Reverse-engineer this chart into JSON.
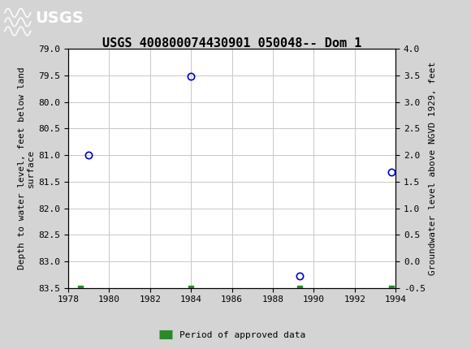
{
  "title": "USGS 400800074430901 050048-- Dom 1",
  "ylabel_left": "Depth to water level, feet below land\nsurface",
  "ylabel_right": "Groundwater level above NGVD 1929, feet",
  "header_color": "#1a7040",
  "background_color": "#d4d4d4",
  "plot_bg_color": "#ffffff",
  "data_points": [
    {
      "year": 1979,
      "depth": 81.0
    },
    {
      "year": 1984,
      "depth": 79.52
    },
    {
      "year": 1989.3,
      "depth": 83.28
    },
    {
      "year": 1993.8,
      "depth": 81.32
    }
  ],
  "green_markers": [
    {
      "year": 1978.6,
      "depth": 83.5
    },
    {
      "year": 1984.0,
      "depth": 83.5
    },
    {
      "year": 1989.3,
      "depth": 83.5
    },
    {
      "year": 1993.8,
      "depth": 83.5
    }
  ],
  "xlim": [
    1978,
    1994
  ],
  "ylim_left_bottom": 83.5,
  "ylim_left_top": 79.0,
  "ylim_right_bottom": -0.5,
  "ylim_right_top": 4.0,
  "xticks": [
    1978,
    1980,
    1982,
    1984,
    1986,
    1988,
    1990,
    1992,
    1994
  ],
  "yticks_left": [
    79.0,
    79.5,
    80.0,
    80.5,
    81.0,
    81.5,
    82.0,
    82.5,
    83.0,
    83.5
  ],
  "yticks_right": [
    4.0,
    3.5,
    3.0,
    2.5,
    2.0,
    1.5,
    1.0,
    0.5,
    0.0,
    -0.5
  ],
  "marker_color": "#0000cc",
  "green_color": "#2a8a2a",
  "legend_label": "Period of approved data",
  "grid_color": "#c8c8c8",
  "tick_fontsize": 8,
  "label_fontsize": 8,
  "title_fontsize": 11
}
